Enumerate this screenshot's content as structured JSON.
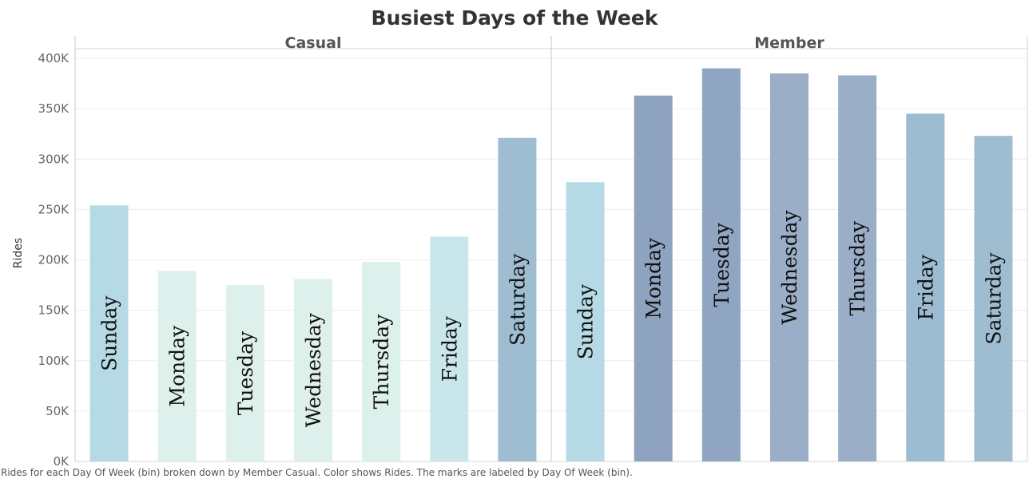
{
  "chart_data": {
    "type": "bar",
    "title": "Busiest Days of the Week",
    "ylabel": "Rides",
    "ylim": [
      0,
      410000
    ],
    "yticks": [
      0,
      50000,
      100000,
      150000,
      200000,
      250000,
      300000,
      350000,
      400000
    ],
    "ytick_labels": [
      "0K",
      "50K",
      "100K",
      "150K",
      "200K",
      "250K",
      "300K",
      "350K",
      "400K"
    ],
    "grid": true,
    "panels": [
      {
        "name": "Casual",
        "categories": [
          "Sunday",
          "Monday",
          "Tuesday",
          "Wednesday",
          "Thursday",
          "Friday",
          "Saturday"
        ],
        "values": [
          254000,
          189000,
          175000,
          181000,
          198000,
          223000,
          321000
        ],
        "colors": [
          "#b5dae5",
          "#ddf0ec",
          "#ddf0ec",
          "#ddf0ec",
          "#dcf0ec",
          "#c9e7ea",
          "#9ebdd1"
        ]
      },
      {
        "name": "Member",
        "categories": [
          "Sunday",
          "Monday",
          "Tuesday",
          "Wednesday",
          "Thursday",
          "Friday",
          "Saturday"
        ],
        "values": [
          277000,
          363000,
          390000,
          385000,
          383000,
          345000,
          323000
        ],
        "colors": [
          "#b5dae5",
          "#8ea3bf",
          "#90a5c1",
          "#9aaec8",
          "#9aaec8",
          "#9cbcd2",
          "#9ebdd1"
        ]
      }
    ],
    "caption": "Rides for each Day Of Week (bin) broken down by Member Casual.  Color shows Rides.  The marks are labeled by Day Of Week (bin)."
  }
}
